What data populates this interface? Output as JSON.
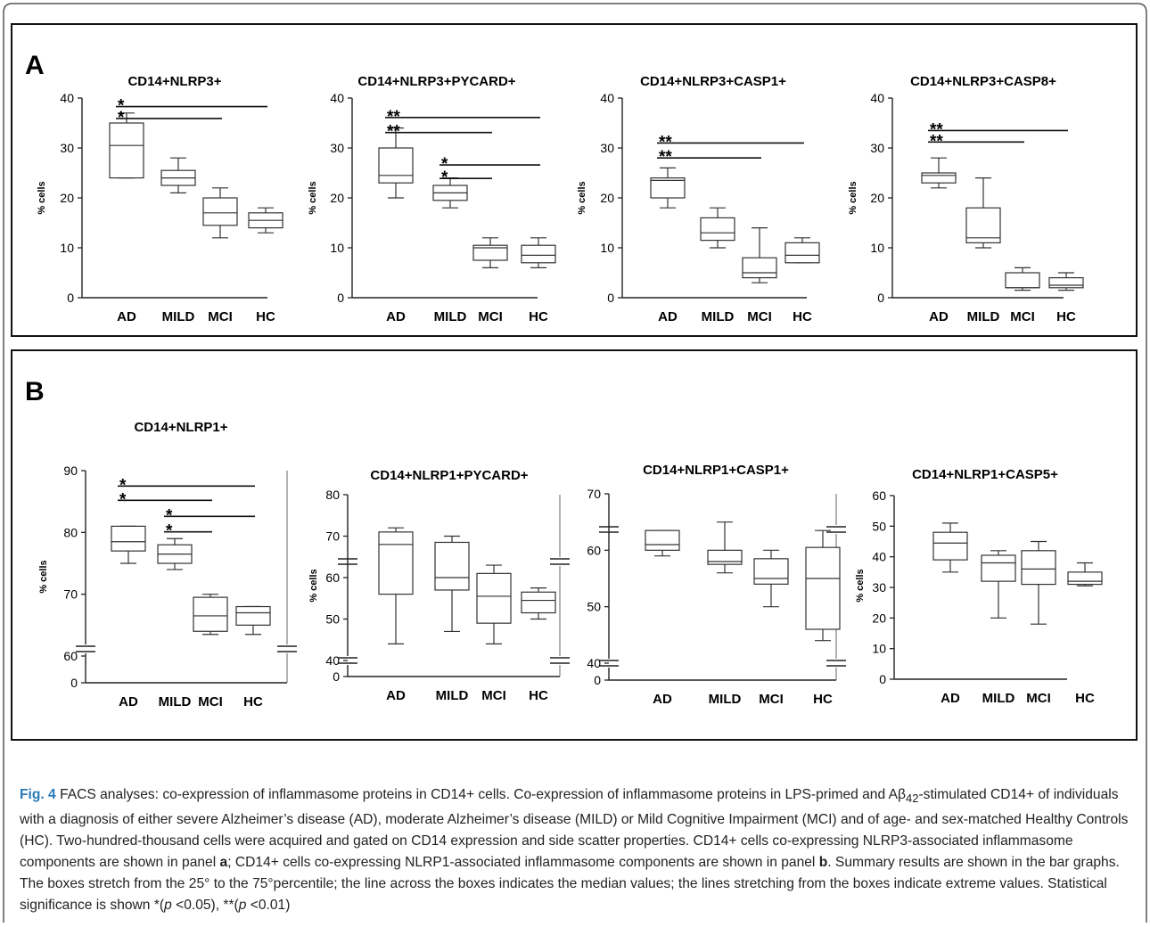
{
  "panels": [
    {
      "label": "A"
    },
    {
      "label": "B"
    }
  ],
  "chart_data": [
    {
      "type": "boxplot",
      "panel": "A",
      "title": "CD14+NLRP3+",
      "ylabel": "% cells",
      "categories": [
        "AD",
        "MILD",
        "MCI",
        "HC"
      ],
      "ylim": [
        0,
        40
      ],
      "yticks": [
        0,
        10,
        20,
        30,
        40
      ],
      "ytick_labels": [
        "0",
        "10",
        "20",
        "30",
        "40"
      ],
      "boxes": [
        {
          "min": 24,
          "q1": 24,
          "median": 30.5,
          "q3": 35,
          "max": 37
        },
        {
          "min": 21,
          "q1": 22.5,
          "median": 24,
          "q3": 25.5,
          "max": 28
        },
        {
          "min": 12,
          "q1": 14.5,
          "median": 17,
          "q3": 20,
          "max": 22
        },
        {
          "min": 13,
          "q1": 14,
          "median": 15.5,
          "q3": 17,
          "max": 18
        }
      ],
      "significance": [
        {
          "from": "AD",
          "to": "HC",
          "y": 38.3,
          "label": "*"
        },
        {
          "from": "AD",
          "to": "MCI",
          "y": 35.9,
          "label": "*"
        }
      ]
    },
    {
      "type": "boxplot",
      "panel": "A",
      "title": "CD14+NLRP3+PYCARD+",
      "ylabel": "% cells",
      "categories": [
        "AD",
        "MILD",
        "MCI",
        "HC"
      ],
      "ylim": [
        0,
        40
      ],
      "yticks": [
        0,
        10,
        20,
        30,
        40
      ],
      "ytick_labels": [
        "0",
        "10",
        "20",
        "30",
        "40"
      ],
      "boxes": [
        {
          "min": 20,
          "q1": 23,
          "median": 24.5,
          "q3": 30,
          "max": 34
        },
        {
          "min": 18,
          "q1": 19.5,
          "median": 21,
          "q3": 22.5,
          "max": 24
        },
        {
          "min": 6,
          "q1": 7.5,
          "median": 10,
          "q3": 10.5,
          "max": 12
        },
        {
          "min": 6,
          "q1": 7,
          "median": 8.5,
          "q3": 10.5,
          "max": 12
        }
      ],
      "significance": [
        {
          "from": "AD",
          "to": "HC",
          "y": 36.1,
          "label": "**"
        },
        {
          "from": "AD",
          "to": "MCI",
          "y": 33.1,
          "label": "**"
        },
        {
          "from": "MILD",
          "to": "HC",
          "y": 26.6,
          "label": "*"
        },
        {
          "from": "MILD",
          "to": "MCI",
          "y": 23.9,
          "label": "*"
        }
      ]
    },
    {
      "type": "boxplot",
      "panel": "A",
      "title": "CD14+NLRP3+CASP1+",
      "ylabel": "% cells",
      "categories": [
        "AD",
        "MILD",
        "MCI",
        "HC"
      ],
      "ylim": [
        0,
        40
      ],
      "yticks": [
        0,
        10,
        20,
        30,
        40
      ],
      "ytick_labels": [
        "0",
        "10",
        "20",
        "30",
        "40"
      ],
      "boxes": [
        {
          "min": 18,
          "q1": 20,
          "median": 23.5,
          "q3": 24,
          "max": 26
        },
        {
          "min": 10,
          "q1": 11.5,
          "median": 13,
          "q3": 16,
          "max": 18
        },
        {
          "min": 3,
          "q1": 4,
          "median": 5,
          "q3": 8,
          "max": 14
        },
        {
          "min": 7,
          "q1": 7,
          "median": 8.5,
          "q3": 11,
          "max": 12
        }
      ],
      "significance": [
        {
          "from": "AD",
          "to": "HC",
          "y": 31,
          "label": "**"
        },
        {
          "from": "AD",
          "to": "MCI",
          "y": 28,
          "label": "**"
        }
      ]
    },
    {
      "type": "boxplot",
      "panel": "A",
      "title": "CD14+NLRP3+CASP8+",
      "ylabel": "% cells",
      "categories": [
        "AD",
        "MILD",
        "MCI",
        "HC"
      ],
      "ylim": [
        0,
        40
      ],
      "yticks": [
        0,
        10,
        20,
        30,
        40
      ],
      "ytick_labels": [
        "0",
        "10",
        "20",
        "30",
        "40"
      ],
      "boxes": [
        {
          "min": 22,
          "q1": 23,
          "median": 24.5,
          "q3": 25,
          "max": 28
        },
        {
          "min": 10,
          "q1": 11,
          "median": 12,
          "q3": 18,
          "max": 24
        },
        {
          "min": 1.5,
          "q1": 2,
          "median": 2,
          "q3": 5,
          "max": 6
        },
        {
          "min": 1.5,
          "q1": 2,
          "median": 2.5,
          "q3": 4,
          "max": 5
        }
      ],
      "significance": [
        {
          "from": "AD",
          "to": "HC",
          "y": 33.5,
          "label": "**"
        },
        {
          "from": "AD",
          "to": "MCI",
          "y": 31.2,
          "label": "**"
        }
      ]
    },
    {
      "type": "boxplot",
      "panel": "B",
      "title": "CD14+NLRP1+",
      "ylabel": "% cells",
      "categories": [
        "AD",
        "MILD",
        "MCI",
        "HC"
      ],
      "axis_break": true,
      "ylim": [
        60,
        90
      ],
      "yticks": [
        0,
        60,
        70,
        80,
        90
      ],
      "ytick_labels": [
        "0",
        "60",
        "70",
        "80",
        "90"
      ],
      "boxes": [
        {
          "min": 75,
          "q1": 77,
          "median": 78.5,
          "q3": 81,
          "max": 81
        },
        {
          "min": 74,
          "q1": 75,
          "median": 76.5,
          "q3": 78,
          "max": 79
        },
        {
          "min": 63.5,
          "q1": 64,
          "median": 66.5,
          "q3": 69.5,
          "max": 70
        },
        {
          "min": 63.5,
          "q1": 65,
          "median": 67,
          "q3": 68,
          "max": 68
        }
      ],
      "significance": [
        {
          "from": "AD",
          "to": "HC",
          "y": 87.5,
          "label": "*"
        },
        {
          "from": "AD",
          "to": "MCI",
          "y": 85.2,
          "label": "*"
        },
        {
          "from": "MILD",
          "to": "HC",
          "y": 82.6,
          "label": "*"
        },
        {
          "from": "MILD",
          "to": "MCI",
          "y": 80.1,
          "label": "*"
        }
      ]
    },
    {
      "type": "boxplot",
      "panel": "B",
      "title": "CD14+NLRP1+PYCARD+",
      "ylabel": "% cells",
      "categories": [
        "AD",
        "MILD",
        "MCI",
        "HC"
      ],
      "axis_break": true,
      "ylim": [
        40,
        80
      ],
      "yticks": [
        0,
        40,
        50,
        60,
        70,
        80
      ],
      "ytick_labels": [
        "0",
        "40",
        "50",
        "60",
        "70",
        "80"
      ],
      "boxes": [
        {
          "min": 44,
          "q1": 56,
          "median": 68,
          "q3": 71,
          "max": 72
        },
        {
          "min": 47,
          "q1": 57,
          "median": 60,
          "q3": 68.5,
          "max": 70
        },
        {
          "min": 44,
          "q1": 49,
          "median": 55.5,
          "q3": 61,
          "max": 63
        },
        {
          "min": 50,
          "q1": 51.5,
          "median": 54.5,
          "q3": 56.5,
          "max": 57.5
        }
      ],
      "significance": []
    },
    {
      "type": "boxplot",
      "panel": "B",
      "title": "CD14+NLRP1+CASP1+",
      "ylabel": "",
      "categories": [
        "AD",
        "MILD",
        "MCI",
        "HC"
      ],
      "axis_break": true,
      "ylim": [
        40,
        70
      ],
      "yticks": [
        0,
        40,
        50,
        60,
        70
      ],
      "ytick_labels": [
        "0",
        "40",
        "50",
        "60",
        "70"
      ],
      "boxes": [
        {
          "min": 59,
          "q1": 60,
          "median": 61,
          "q3": 63.5,
          "max": 63.5
        },
        {
          "min": 56,
          "q1": 57.5,
          "median": 58,
          "q3": 60,
          "max": 65
        },
        {
          "min": 50,
          "q1": 54,
          "median": 55,
          "q3": 58.5,
          "max": 60
        },
        {
          "min": 44,
          "q1": 46,
          "median": 55,
          "q3": 60.5,
          "max": 63.5
        }
      ],
      "significance": []
    },
    {
      "type": "boxplot",
      "panel": "B",
      "title": "CD14+NLRP1+CASP5+",
      "ylabel": "% cells",
      "categories": [
        "AD",
        "MILD",
        "MCI",
        "HC"
      ],
      "ylim": [
        0,
        60
      ],
      "yticks": [
        0,
        10,
        20,
        30,
        40,
        50,
        60
      ],
      "ytick_labels": [
        "0",
        "10",
        "20",
        "30",
        "40",
        "50",
        "60"
      ],
      "boxes": [
        {
          "min": 35,
          "q1": 39,
          "median": 44.5,
          "q3": 48,
          "max": 51
        },
        {
          "min": 20,
          "q1": 32,
          "median": 38,
          "q3": 40.5,
          "max": 42
        },
        {
          "min": 18,
          "q1": 31,
          "median": 36,
          "q3": 42,
          "max": 45
        },
        {
          "min": 30.5,
          "q1": 31,
          "median": 32,
          "q3": 35,
          "max": 38
        }
      ],
      "significance": []
    }
  ],
  "caption": {
    "fig_label": "Fig. 4",
    "html": " FACS analyses: co-expression of inflammasome proteins in CD14+ cells. Co-expression of inflammasome proteins in LPS-primed and A&beta;<sub>42</sub>-stimulated CD14+ of individuals with a diagnosis of either severe Alzheimer’s disease (AD), moderate Alzheimer’s disease (MILD) or Mild Cognitive Impairment (MCI) and of age- and sex-matched Healthy Controls (HC). Two-hundred-thousand cells were acquired and gated on CD14 expression and side scatter properties. CD14+ cells co-expressing NLRP3-associated inflammasome components are shown in panel <b>a</b>; CD14+ cells co-expressing NLRP1-associated inflammasome components are shown in panel <b>b</b>. Summary results are shown in the bar graphs. The boxes stretch from the 25° to the 75°percentile; the line across the boxes indicates the median values; the lines stretching from the boxes indicate extreme values. Statistical significance is shown *(<i>p</i> &lt;0.05), **(<i>p</i> &lt;0.01)"
  }
}
